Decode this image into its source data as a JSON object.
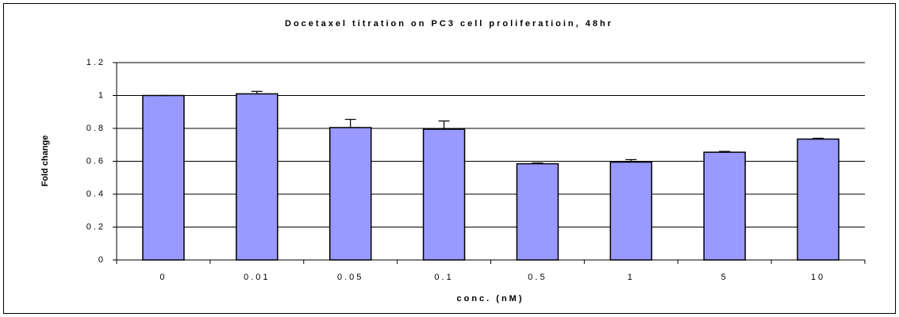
{
  "chart_data": {
    "type": "bar",
    "title": "Docetaxel titration on PC3 cell proliferatioin, 48hr",
    "x_label": "conc. (nM)",
    "y_label": "Fold change",
    "categories": [
      "0",
      "0.01",
      "0.05",
      "0.1",
      "0.5",
      "1",
      "5",
      "10"
    ],
    "values": [
      1.0,
      1.01,
      0.805,
      0.795,
      0.585,
      0.595,
      0.655,
      0.735
    ],
    "errors": [
      0,
      0.015,
      0.05,
      0.05,
      0.005,
      0.015,
      0.005,
      0.005
    ],
    "color": "#9999ff",
    "ylim": [
      0,
      1.2
    ],
    "yticks": [
      0,
      0.2,
      0.4,
      0.6,
      0.8,
      1,
      1.2
    ],
    "grid": true
  }
}
